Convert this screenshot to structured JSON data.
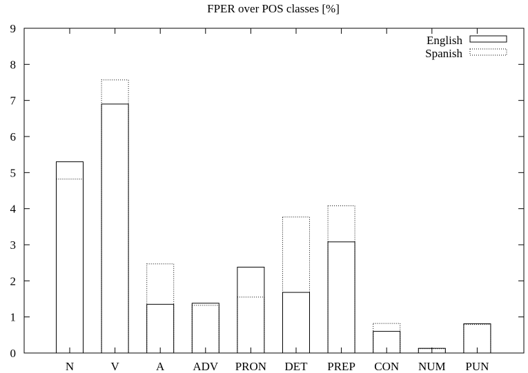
{
  "chart_data": {
    "type": "bar",
    "title": "FPER over POS classes [%]",
    "xlabel": "",
    "ylabel": "",
    "categories": [
      "N",
      "V",
      "A",
      "ADV",
      "PRON",
      "DET",
      "PREP",
      "CON",
      "NUM",
      "PUN"
    ],
    "series": [
      {
        "name": "English",
        "style": "solid",
        "values": [
          5.3,
          6.9,
          1.35,
          1.38,
          2.38,
          1.68,
          3.08,
          0.6,
          0.13,
          0.81
        ]
      },
      {
        "name": "Spanish",
        "style": "dotted",
        "values": [
          4.82,
          7.57,
          2.47,
          1.32,
          1.55,
          3.77,
          4.08,
          0.82,
          0.12,
          0.79
        ]
      }
    ],
    "ylim": [
      0,
      9
    ],
    "yticks": [
      0,
      1,
      2,
      3,
      4,
      5,
      6,
      7,
      8,
      9
    ],
    "legend_position": "top-right",
    "grid": false
  }
}
